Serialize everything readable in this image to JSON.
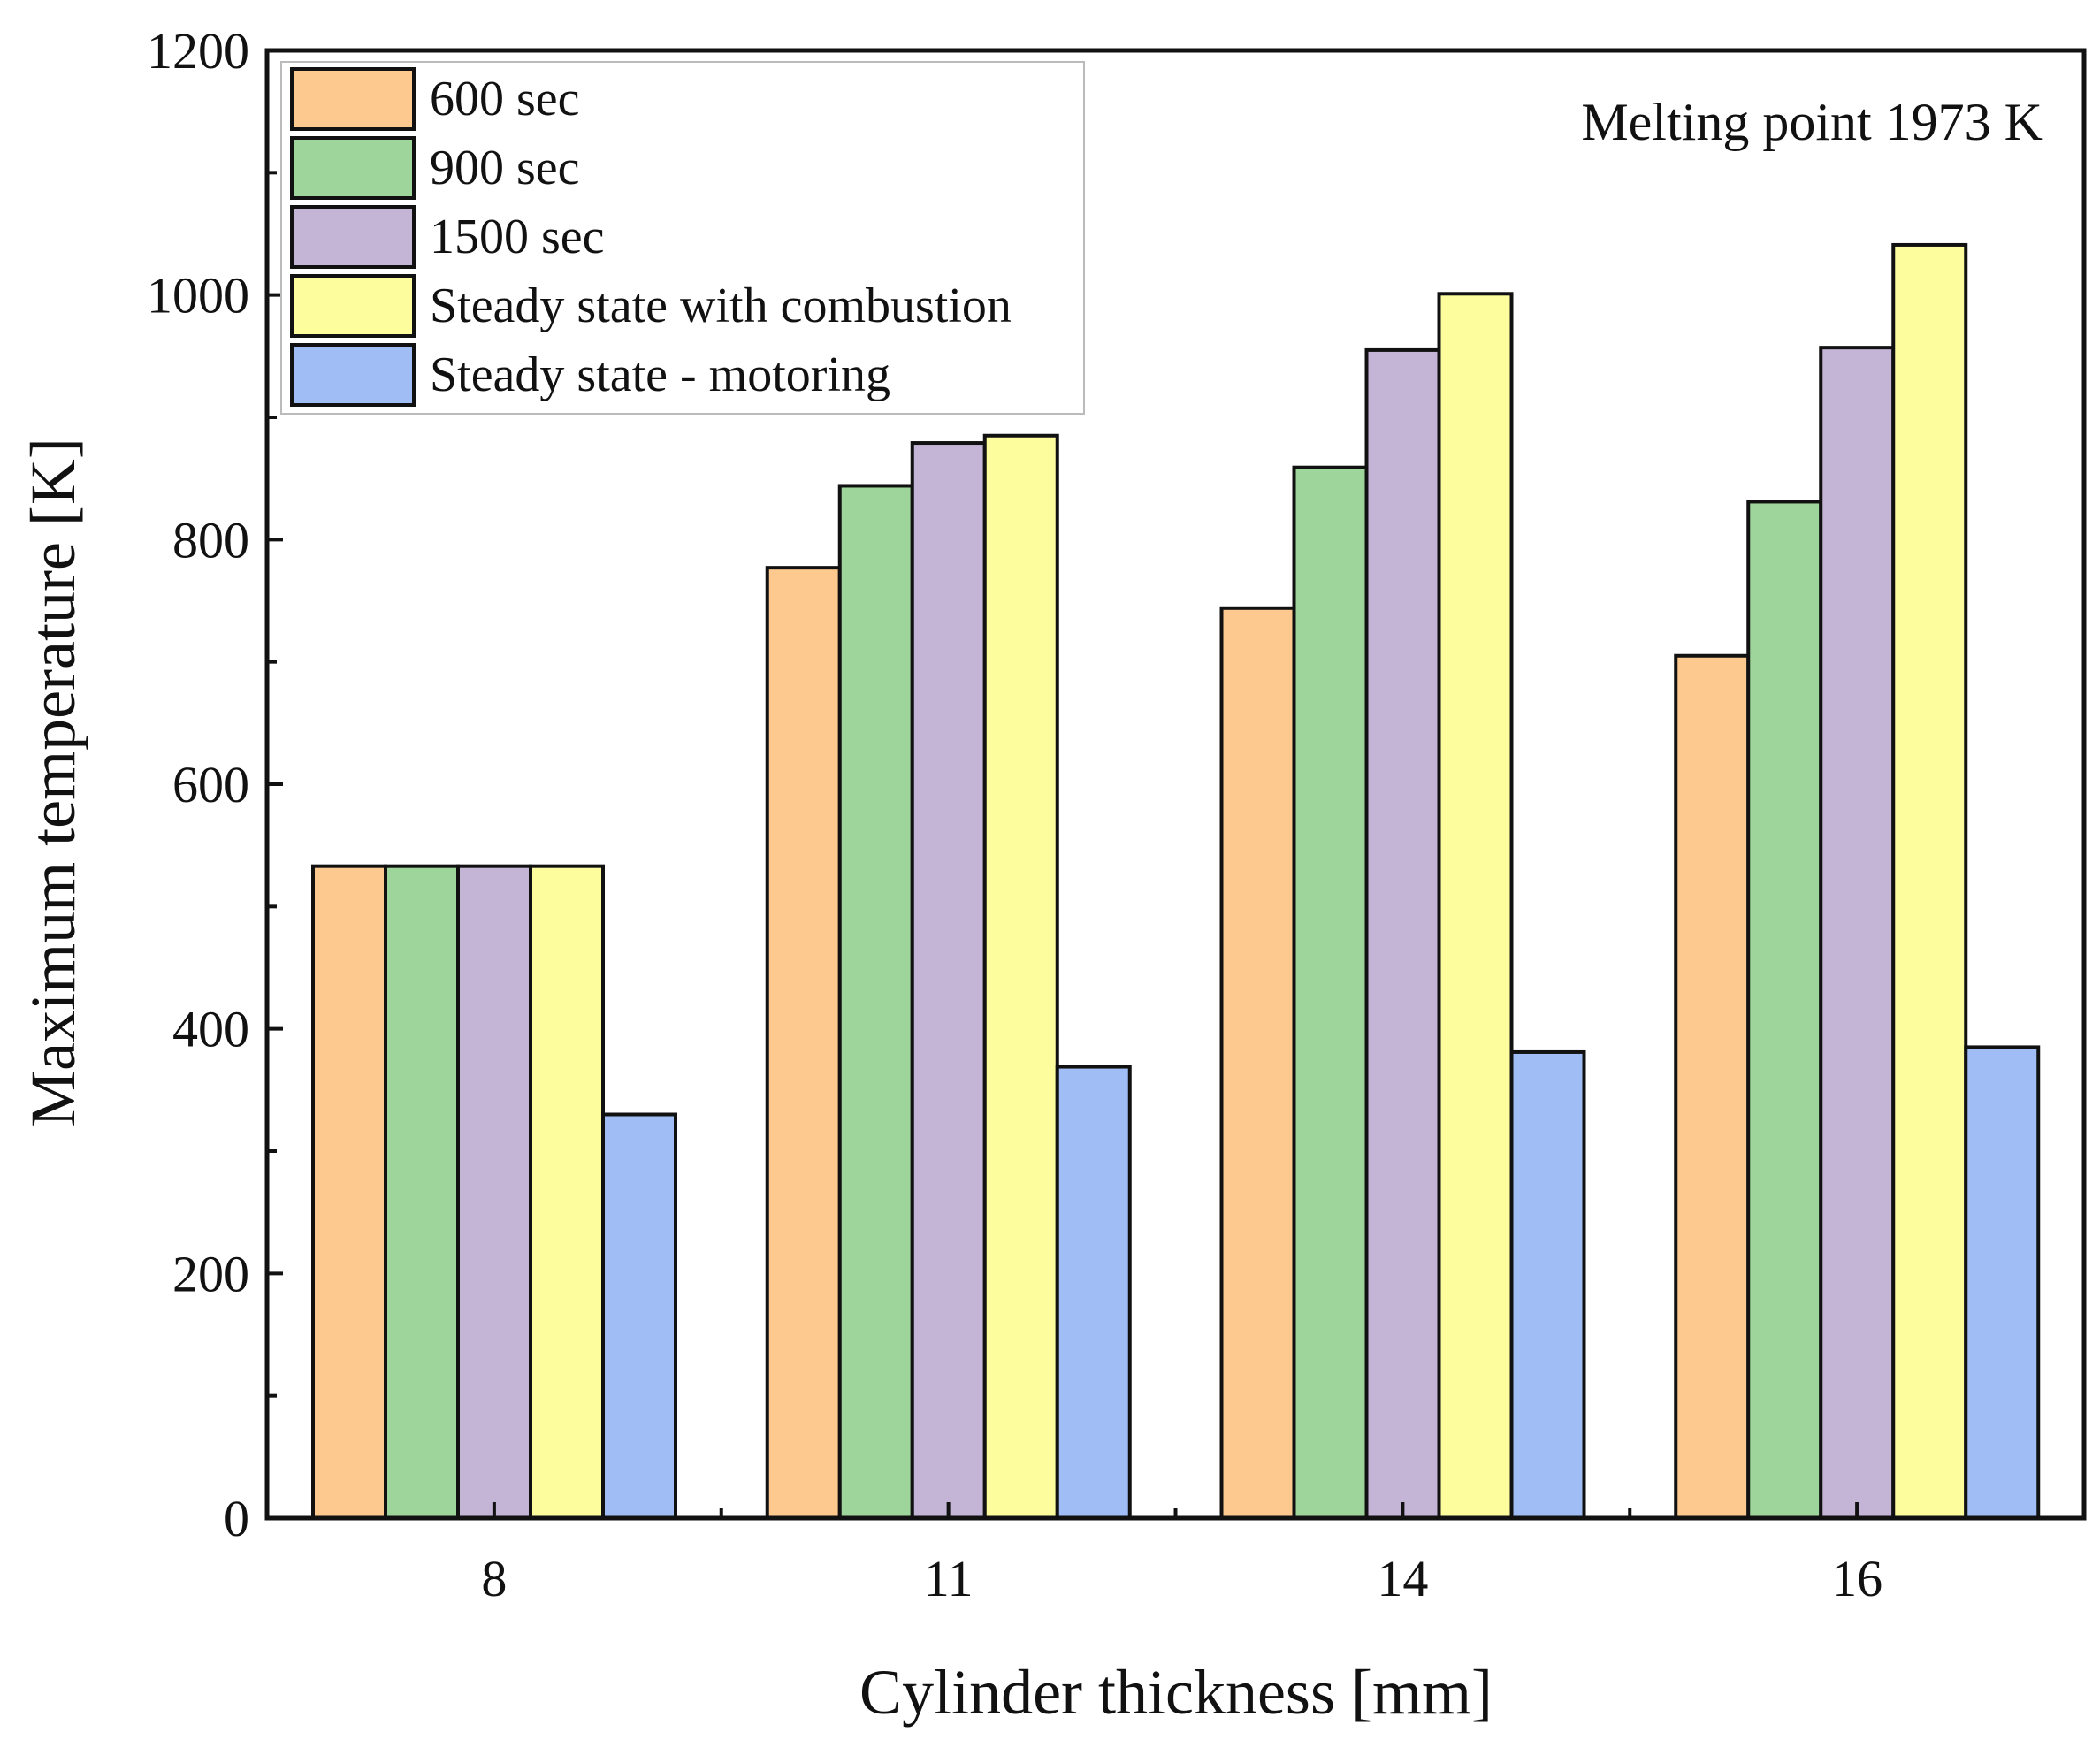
{
  "chart_data": {
    "type": "bar",
    "title": "",
    "xlabel": "Cylinder thickness [mm]",
    "ylabel": "Maximum temperature [K]",
    "ylim": [
      0,
      1200
    ],
    "yticks": [
      0,
      200,
      400,
      600,
      800,
      1000,
      1200
    ],
    "categories": [
      "8",
      "11",
      "14",
      "16"
    ],
    "series": [
      {
        "name": "600 sec",
        "color": "#FDC98E",
        "values": [
          533,
          777,
          744,
          705
        ]
      },
      {
        "name": "900 sec",
        "color": "#9ED59A",
        "values": [
          533,
          844,
          859,
          831
        ]
      },
      {
        "name": "1500 sec",
        "color": "#C4B4D6",
        "values": [
          533,
          879,
          955,
          957
        ]
      },
      {
        "name": "Steady state with combustion",
        "color": "#FDFD9E",
        "values": [
          533,
          885,
          1001,
          1041
        ]
      },
      {
        "name": "Steady state - motoring",
        "color": "#A0BDF6",
        "values": [
          330,
          369,
          381,
          385
        ]
      }
    ],
    "annotation": "Melting point 1973 K",
    "legend_position": "top-left",
    "grid": false
  }
}
